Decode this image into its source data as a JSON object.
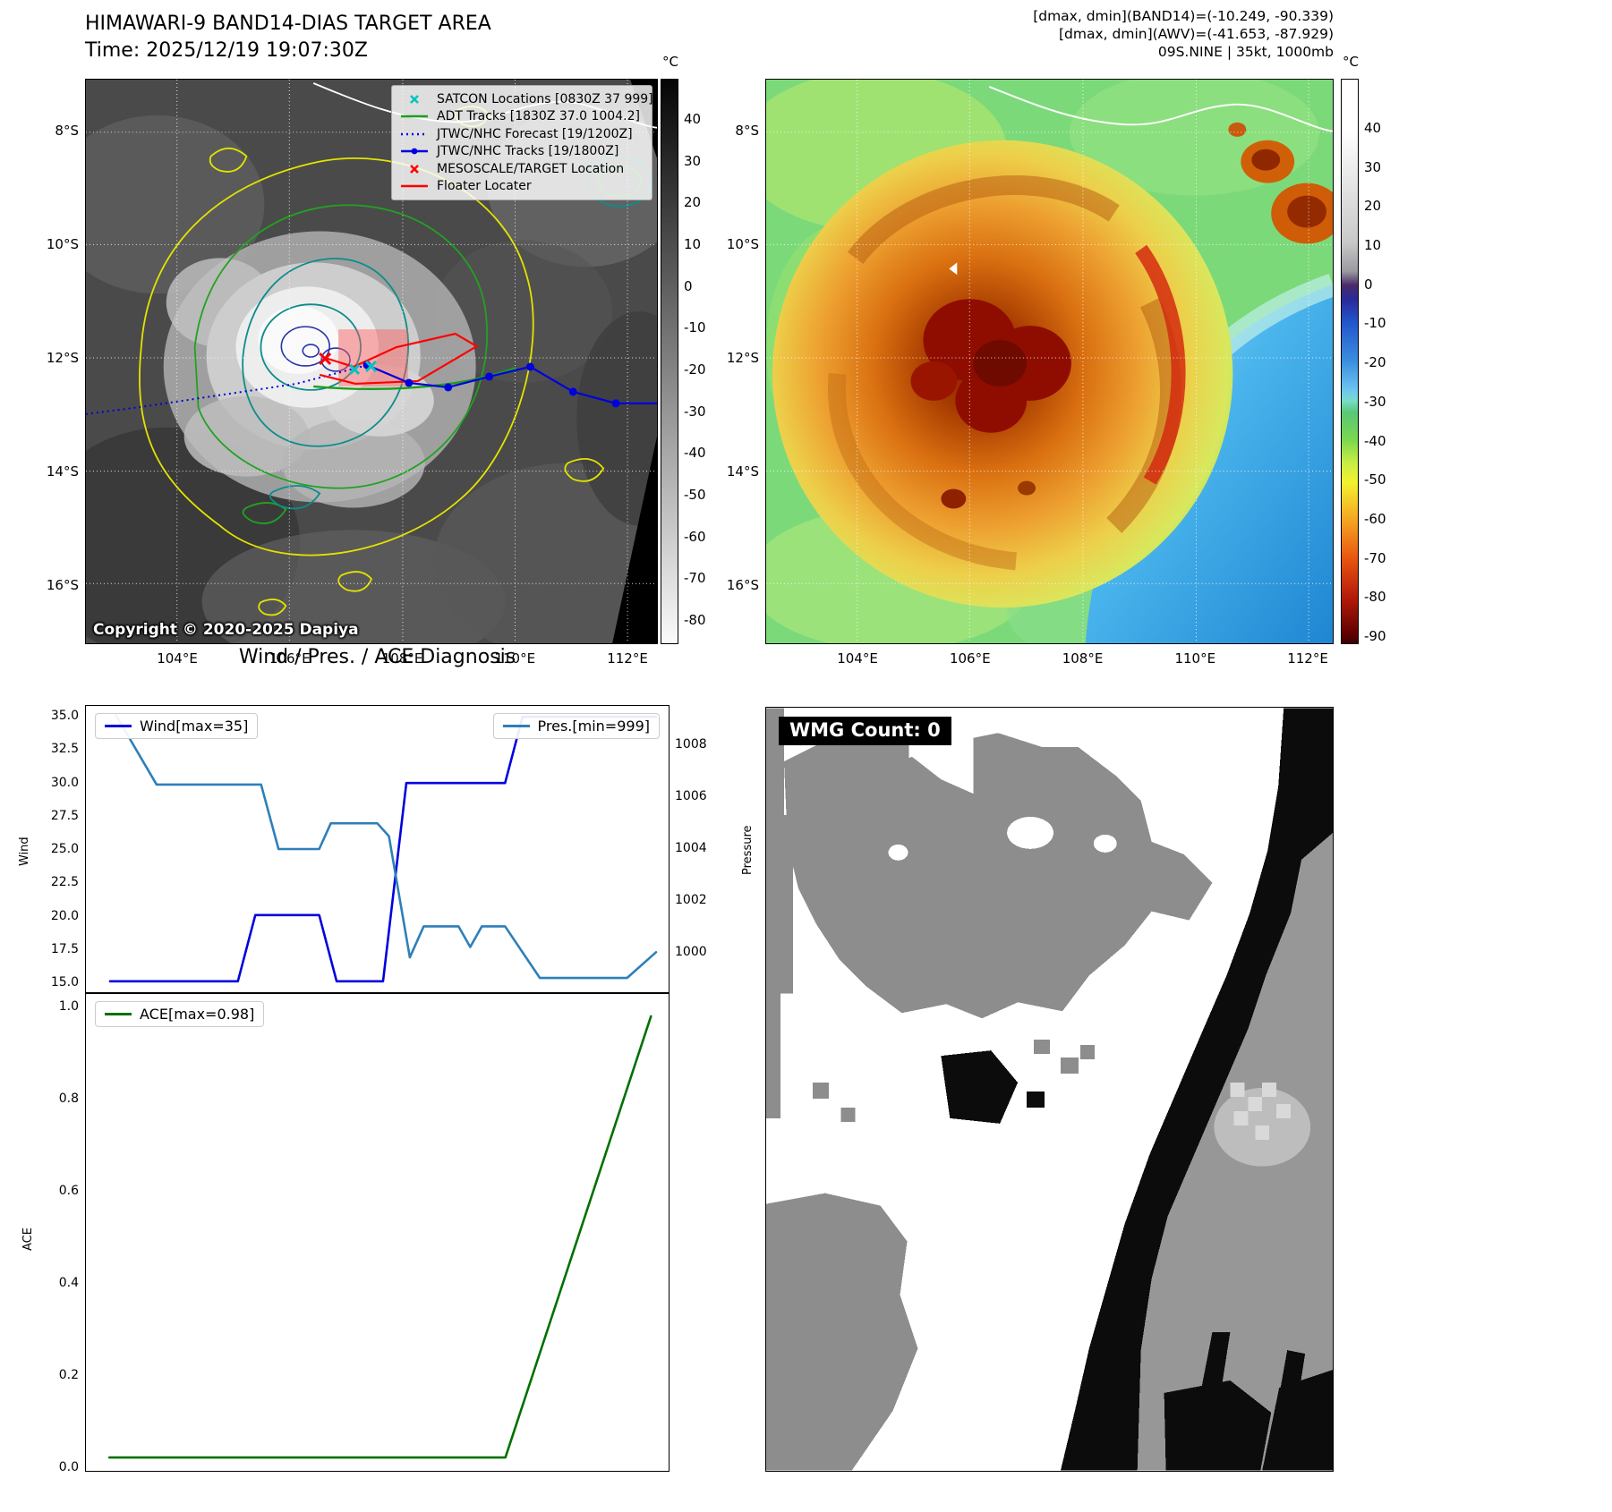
{
  "band14": {
    "title": "HIMAWARI-9 BAND14-DIAS TARGET AREA",
    "time": "Time: 2025/12/19 19:07:30Z",
    "colorbar_unit": "°C",
    "colorbar_ticks": [
      "40",
      "30",
      "20",
      "10",
      "0",
      "-10",
      "-20",
      "-30",
      "-40",
      "-50",
      "-60",
      "-70",
      "-80"
    ],
    "legend": [
      {
        "label": "SATCON Locations [0830Z 37 999]",
        "marker": "cyan-x-marker",
        "color": "#00c3c3"
      },
      {
        "label": "ADT Tracks [1830Z 37.0 1004.2]",
        "marker": "green-line-marker",
        "color": "#1c9e1c"
      },
      {
        "label": "JTWC/NHC Forecast [19/1200Z]",
        "marker": "blue-dotted-line-marker",
        "color": "#0000dd"
      },
      {
        "label": "JTWC/NHC Tracks [19/1800Z]",
        "marker": "blue-line-dot-marker",
        "color": "#0000dd"
      },
      {
        "label": "MESOSCALE/TARGET Location",
        "marker": "red-x-marker",
        "color": "#ff0000"
      },
      {
        "label": "Floater Locater",
        "marker": "red-line-marker",
        "color": "#ff0000"
      }
    ],
    "copyright": "Copyright © 2020-2025 Dapiya"
  },
  "awv": {
    "header1": "[dmax, dmin](BAND14)=(-10.249, -90.339)",
    "header2": "[dmax, dmin](AWV)=(-41.653, -87.929)",
    "header3": "09S.NINE | 35kt, 1000mb",
    "colorbar_unit": "°C",
    "colorbar_ticks": [
      "40",
      "30",
      "20",
      "10",
      "0",
      "-10",
      "-20",
      "-30",
      "-40",
      "-50",
      "-60",
      "-70",
      "-80",
      "-90"
    ]
  },
  "geo": {
    "lat_ticks": [
      "8°S",
      "10°S",
      "12°S",
      "14°S",
      "16°S"
    ],
    "lon_ticks": [
      "104°E",
      "106°E",
      "108°E",
      "110°E",
      "112°E"
    ]
  },
  "diagnosis": {
    "title": "Wind / Pres. / ACE Diagnosis",
    "wind_axis_label": "Wind",
    "pressure_axis_label": "Pressure",
    "ace_axis_label": "ACE",
    "wind_ticks": [
      "35.0",
      "32.5",
      "30.0",
      "27.5",
      "25.0",
      "22.5",
      "20.0",
      "17.5",
      "15.0"
    ],
    "pressure_ticks": [
      "1008",
      "1006",
      "1004",
      "1002",
      "1000"
    ],
    "ace_ticks": [
      "1.0",
      "0.8",
      "0.6",
      "0.4",
      "0.2",
      "0.0"
    ]
  },
  "wmg": {
    "count_label": "WMG Count: 0"
  },
  "chart_data": [
    {
      "type": "line",
      "title": "Wind / Pres. / ACE Diagnosis",
      "xlabel": "",
      "ylabel_left": "Wind",
      "ylabel_right": "Pressure",
      "ylim_left": [
        15,
        35
      ],
      "ylim_right": [
        999,
        1008
      ],
      "grid": false,
      "legend": [
        "Wind[max=35]",
        "Pres.[min=999]"
      ],
      "legend_position": "Wind upper-left, Pres. upper-right",
      "series": [
        {
          "name": "Wind",
          "axis": "left",
          "color": "#0000e0",
          "max": 35,
          "x_frac": [
            0.04,
            0.26,
            0.29,
            0.4,
            0.43,
            0.51,
            0.55,
            0.72,
            0.75,
            0.98
          ],
          "values": [
            15,
            15,
            20,
            20,
            15,
            15,
            30,
            30,
            35,
            35
          ]
        },
        {
          "name": "Pres.",
          "axis": "right",
          "color": "#2e7fb9",
          "min": 999,
          "x_frac": [
            0.05,
            0.12,
            0.3,
            0.33,
            0.4,
            0.42,
            0.5,
            0.52,
            0.556,
            0.58,
            0.64,
            0.66,
            0.68,
            0.72,
            0.78,
            0.93,
            0.98
          ],
          "values": [
            1009.2,
            1006.5,
            1006.5,
            1004,
            1004,
            1005,
            1005,
            1004.5,
            999.8,
            1001,
            1001,
            1000.2,
            1001,
            1001,
            999,
            999,
            1000
          ]
        }
      ]
    },
    {
      "type": "line",
      "ylabel": "ACE",
      "ylim": [
        0,
        1.0
      ],
      "grid": false,
      "legend": [
        "ACE[max=0.98]"
      ],
      "legend_position": "upper-left",
      "series": [
        {
          "name": "ACE",
          "axis": "left",
          "color": "#007000",
          "max": 0.98,
          "x_frac": [
            0.04,
            0.72,
            0.97
          ],
          "values": [
            0,
            0,
            0.98
          ]
        }
      ]
    }
  ]
}
